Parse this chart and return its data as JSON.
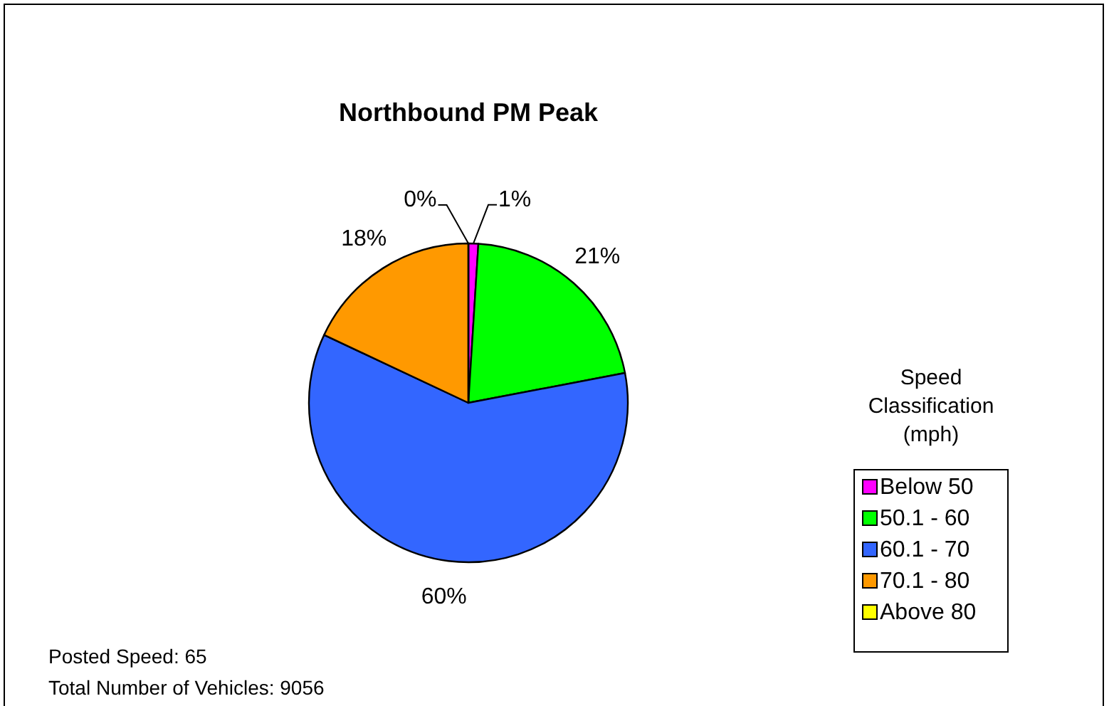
{
  "chart_data": {
    "type": "pie",
    "title": "Northbound PM Peak",
    "legend_title": "Speed Classification (mph)",
    "categories": [
      "Below 50",
      "50.1 - 60",
      "60.1 - 70",
      "70.1 - 80",
      "Above 80"
    ],
    "values": [
      1,
      21,
      60,
      18,
      0
    ],
    "value_labels": [
      "1%",
      "21%",
      "60%",
      "18%",
      "0%"
    ],
    "colors": [
      "#ff00ff",
      "#00ff00",
      "#3366ff",
      "#ff9900",
      "#ffff00"
    ],
    "legend": "right",
    "annotations": [
      "Posted Speed: 65",
      "Total Number of Vehicles: 9056"
    ]
  }
}
